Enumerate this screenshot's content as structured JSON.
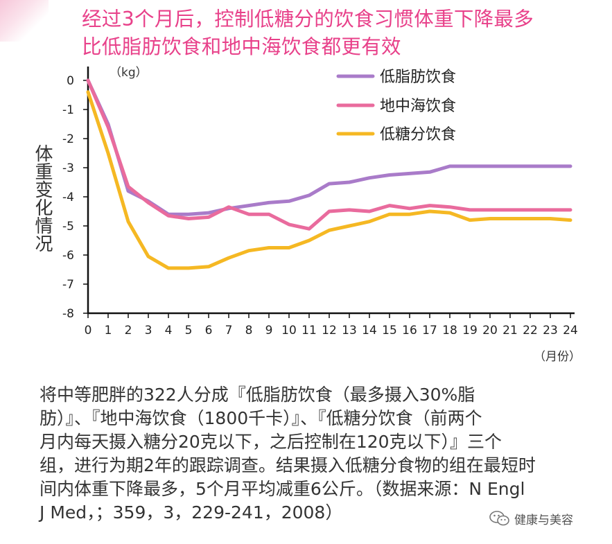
{
  "title_lines": [
    "经过3个月后，控制低糖分的饮食习惯体重下降最多",
    "比低脂肪饮食和地中海饮食都更有效"
  ],
  "y_axis_label": "体重变化情况",
  "description_lines": [
    "将中等肥胖的322人分成『低脂肪饮食（最多摄入30%脂",
    "肪）』、『地中海饮食（1800千卡）』、『低糖分饮食（前两个",
    "月内每天摄入糖分20克以下，之后控制在120克以下）』三个",
    "组，进行为期2年的跟踪调查。结果摄入低糖分食物的组在最短时",
    "间内体重下降最多，5个月平均减重6公斤。（数据来源：N Engl",
    "J Med，；359，3，229-241，2008）"
  ],
  "watermark": {
    "icon": "wechat-icon",
    "text": "健康与美容"
  },
  "chart_data": {
    "type": "line",
    "ylabel": "体重变化情况",
    "y_unit": "（kg）",
    "x_unit": "（月份）",
    "xlabel": "",
    "xlim": [
      0,
      24
    ],
    "ylim": [
      -8,
      0
    ],
    "x": [
      0,
      1,
      2,
      3,
      4,
      5,
      6,
      7,
      8,
      9,
      10,
      11,
      12,
      13,
      14,
      15,
      16,
      17,
      18,
      19,
      20,
      21,
      22,
      23,
      24
    ],
    "x_ticks": [
      0,
      1,
      2,
      3,
      4,
      5,
      6,
      7,
      8,
      9,
      10,
      11,
      12,
      13,
      14,
      15,
      16,
      17,
      18,
      19,
      20,
      21,
      22,
      23,
      24
    ],
    "y_ticks": [
      0,
      -1,
      -2,
      -3,
      -4,
      -5,
      -6,
      -7,
      -8
    ],
    "grid": false,
    "legend_position": "top-right",
    "series": [
      {
        "name": "低脂肪饮食",
        "color": "#a97bc9",
        "values": [
          0,
          -1.5,
          -3.8,
          -4.15,
          -4.6,
          -4.6,
          -4.55,
          -4.4,
          -4.3,
          -4.2,
          -4.15,
          -3.95,
          -3.55,
          -3.5,
          -3.35,
          -3.25,
          -3.2,
          -3.15,
          -2.95,
          -2.95,
          -2.95,
          -2.95,
          -2.95,
          -2.95,
          -2.95
        ]
      },
      {
        "name": "地中海饮食",
        "color": "#e96b9d",
        "values": [
          0,
          -1.6,
          -3.65,
          -4.2,
          -4.65,
          -4.75,
          -4.7,
          -4.35,
          -4.6,
          -4.6,
          -4.95,
          -5.1,
          -4.5,
          -4.45,
          -4.5,
          -4.3,
          -4.4,
          -4.3,
          -4.35,
          -4.45,
          -4.45,
          -4.45,
          -4.45,
          -4.45,
          -4.45
        ]
      },
      {
        "name": "低糖分饮食",
        "color": "#f5b823",
        "values": [
          -0.4,
          -2.5,
          -4.85,
          -6.05,
          -6.45,
          -6.45,
          -6.4,
          -6.1,
          -5.85,
          -5.75,
          -5.75,
          -5.5,
          -5.15,
          -5.0,
          -4.85,
          -4.6,
          -4.6,
          -4.5,
          -4.55,
          -4.8,
          -4.75,
          -4.75,
          -4.75,
          -4.75,
          -4.8
        ]
      }
    ]
  }
}
